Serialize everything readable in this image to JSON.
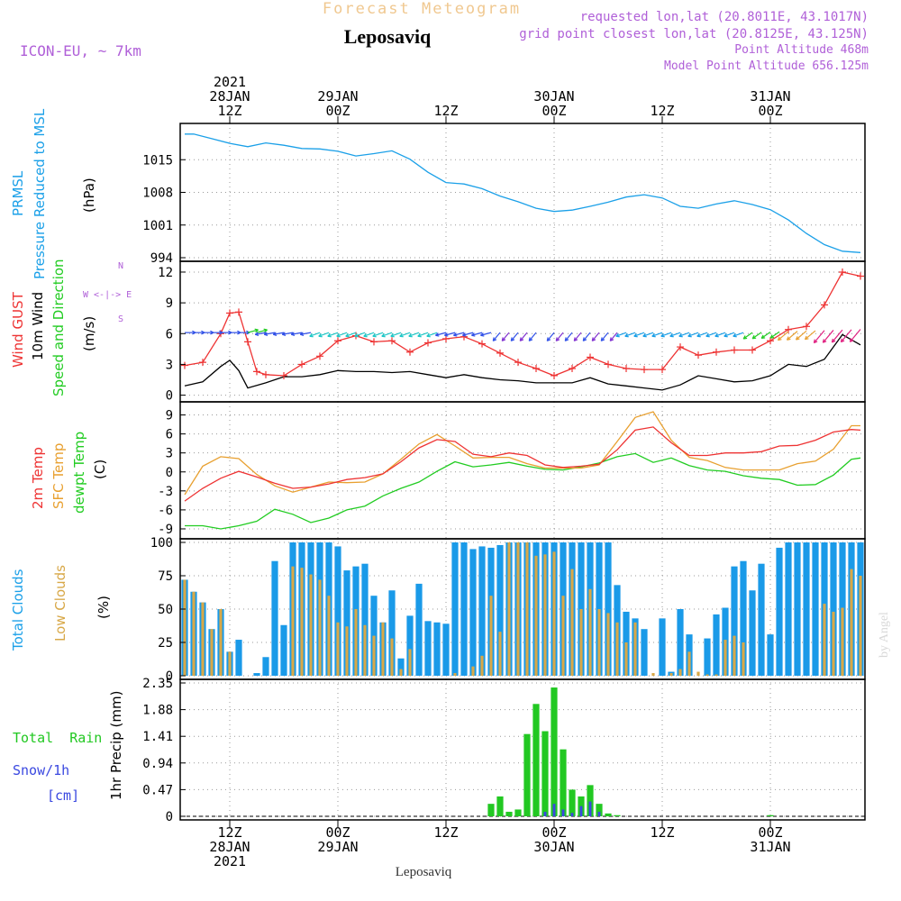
{
  "header": {
    "brand": "Forecast Meteogram",
    "location": "Leposaviq",
    "model": "ICON-EU, ~ 7km",
    "requested": "requested lon,lat (20.8011E, 43.1017N)",
    "grid_point": "grid point closest lon,lat (20.8125E, 43.125N)",
    "point_alt": "Point Altitude 468m",
    "model_alt": "Model Point Altitude 656.125m"
  },
  "footer": {
    "location": "Leposaviq",
    "watermark": "by Angel"
  },
  "time_axis": {
    "top_labels": [
      {
        "t": 0,
        "lines": [
          "2021",
          "28JAN",
          "12Z"
        ]
      },
      {
        "t": 12,
        "lines": [
          "29JAN",
          "00Z"
        ]
      },
      {
        "t": 24,
        "lines": [
          "12Z"
        ]
      },
      {
        "t": 36,
        "lines": [
          "30JAN",
          "00Z"
        ]
      },
      {
        "t": 48,
        "lines": [
          "12Z"
        ]
      },
      {
        "t": 60,
        "lines": [
          "31JAN",
          "00Z"
        ]
      }
    ],
    "bottom_labels": [
      {
        "t": 0,
        "lines": [
          "12Z",
          "28JAN",
          "2021"
        ]
      },
      {
        "t": 12,
        "lines": [
          "00Z",
          "29JAN"
        ]
      },
      {
        "t": 24,
        "lines": [
          "12Z"
        ]
      },
      {
        "t": 36,
        "lines": [
          "00Z",
          "30JAN"
        ]
      },
      {
        "t": 48,
        "lines": [
          "12Z"
        ]
      },
      {
        "t": 60,
        "lines": [
          "00Z",
          "31JAN"
        ]
      }
    ],
    "range_hours": [
      -5.5,
      70.5
    ]
  },
  "panel_labels": {
    "pressure": {
      "l1": "PRMSL",
      "l2": "Pressure Reduced to MSL",
      "unit": "(hPa)"
    },
    "wind": {
      "l1": "Wind GUST",
      "l2": "10m Wind",
      "l3": "Speed and Direction",
      "unit": "(m/s)",
      "compass_n": "N",
      "compass_s": "S",
      "compass_w": "W <-|-> E"
    },
    "temp": {
      "l1": "2m Temp",
      "l2": "SFC Temp",
      "l3": "dewpt Temp",
      "unit": "(C)"
    },
    "clouds": {
      "l1": "Total Clouds",
      "l2": "Low Clouds",
      "unit": "(%)"
    },
    "precip": {
      "l1": "Total  Rain",
      "l2": "Snow/1h",
      "l3": "[cm]",
      "unit": "1hr Precip (mm)"
    }
  },
  "colors": {
    "pressure": "#1ba0e8",
    "gust": "#ee3333",
    "wind": "#000000",
    "t2m": "#ee3333",
    "sfc": "#e8a030",
    "dew": "#22cc22",
    "total_cloud": "#1a9ae8",
    "low_cloud": "#d8a848",
    "rain": "#22c822",
    "snow": "#3a48e0",
    "purple": "#b060d8",
    "orange_brand": "#f0c890"
  },
  "chart_data": [
    {
      "type": "line",
      "id": "pressure",
      "title": "PRMSL Pressure Reduced to MSL",
      "ylabel": "(hPa)",
      "ylim": [
        994,
        1022
      ],
      "yticks": [
        994,
        1001,
        1008,
        1015
      ],
      "series": [
        {
          "name": "PRMSL",
          "x": [
            -5,
            -4,
            -2,
            0,
            2,
            4,
            6,
            8,
            10,
            12,
            14,
            16,
            18,
            20,
            22,
            24,
            26,
            28,
            30,
            32,
            34,
            36,
            38,
            40,
            42,
            44,
            46,
            48,
            50,
            52,
            54,
            56,
            58,
            60,
            62,
            64,
            66,
            68,
            70
          ],
          "y": [
            1020.5,
            1020.5,
            1019.5,
            1018.5,
            1017.8,
            1018.6,
            1018.1,
            1017.4,
            1017.3,
            1016.8,
            1015.8,
            1016.3,
            1016.9,
            1015.1,
            1012.3,
            1010.1,
            1009.8,
            1008.8,
            1007.2,
            1006.0,
            1004.6,
            1003.9,
            1004.2,
            1005.0,
            1005.9,
            1007.0,
            1007.5,
            1006.8,
            1005.0,
            1004.6,
            1005.5,
            1006.2,
            1005.4,
            1004.3,
            1002.1,
            999.2,
            996.8,
            995.4,
            995.1
          ]
        }
      ]
    },
    {
      "type": "line",
      "id": "wind",
      "title": "Wind GUST / 10m Wind Speed and Direction",
      "ylabel": "(m/s)",
      "ylim": [
        -0.3,
        12.7
      ],
      "yticks": [
        0,
        3,
        6,
        9,
        12
      ],
      "series": [
        {
          "name": "Wind GUST",
          "x": [
            -5,
            -3,
            -1,
            0,
            1,
            2,
            3,
            4,
            6,
            8,
            10,
            12,
            14,
            16,
            18,
            20,
            22,
            24,
            26,
            28,
            30,
            32,
            34,
            36,
            38,
            40,
            42,
            44,
            46,
            48,
            50,
            52,
            54,
            56,
            58,
            60,
            62,
            64,
            66,
            68,
            70
          ],
          "y": [
            2.9,
            3.2,
            6.0,
            8.0,
            8.1,
            5.2,
            2.3,
            2.0,
            1.9,
            3.0,
            3.8,
            5.3,
            5.8,
            5.2,
            5.3,
            4.2,
            5.1,
            5.5,
            5.7,
            5.0,
            4.1,
            3.2,
            2.6,
            1.9,
            2.6,
            3.7,
            3.0,
            2.6,
            2.5,
            2.5,
            4.7,
            3.9,
            4.2,
            4.4,
            4.4,
            5.3,
            6.4,
            6.7,
            8.8,
            12.0,
            11.6
          ]
        },
        {
          "name": "10m Wind",
          "x": [
            -5,
            -3,
            -1,
            0,
            1,
            2,
            4,
            6,
            8,
            10,
            12,
            14,
            16,
            18,
            20,
            22,
            24,
            26,
            28,
            30,
            32,
            34,
            36,
            38,
            40,
            42,
            44,
            46,
            48,
            50,
            52,
            54,
            56,
            58,
            60,
            62,
            64,
            66,
            68,
            70
          ],
          "y": [
            0.9,
            1.3,
            2.8,
            3.4,
            2.4,
            0.7,
            1.2,
            1.8,
            1.8,
            2.0,
            2.4,
            2.3,
            2.3,
            2.2,
            2.3,
            2.0,
            1.7,
            2.0,
            1.7,
            1.5,
            1.4,
            1.2,
            1.2,
            1.2,
            1.7,
            1.1,
            0.9,
            0.7,
            0.5,
            1.0,
            1.9,
            1.6,
            1.3,
            1.4,
            1.9,
            3.0,
            2.8,
            3.5,
            5.9,
            4.9
          ]
        }
      ]
    },
    {
      "type": "line",
      "id": "temperature",
      "title": "2m Temp / SFC Temp / dewpt Temp",
      "ylabel": "(C)",
      "ylim": [
        -10,
        10.5
      ],
      "yticks": [
        -9,
        -6,
        -3,
        0,
        3,
        6,
        9
      ],
      "series": [
        {
          "name": "2m Temp",
          "x": [
            -5,
            -3,
            -1,
            1,
            3,
            5,
            7,
            9,
            11,
            13,
            15,
            17,
            19,
            21,
            23,
            25,
            27,
            29,
            31,
            33,
            35,
            37,
            39,
            41,
            43,
            45,
            47,
            49,
            51,
            53,
            55,
            57,
            59,
            61,
            63,
            65,
            67,
            69,
            70
          ],
          "y": [
            -4.6,
            -2.6,
            -1.0,
            0.1,
            -0.8,
            -1.8,
            -2.6,
            -2.4,
            -1.9,
            -1.2,
            -0.9,
            -0.3,
            1.6,
            3.8,
            5.1,
            4.8,
            2.8,
            2.4,
            3.0,
            2.6,
            1.1,
            0.7,
            0.9,
            1.2,
            3.5,
            6.6,
            7.1,
            4.6,
            2.6,
            2.6,
            3.0,
            3.0,
            3.2,
            4.1,
            4.2,
            5.0,
            6.3,
            6.7,
            6.6
          ]
        },
        {
          "name": "SFC Temp",
          "x": [
            -5,
            -3,
            -1,
            1,
            3,
            5,
            7,
            9,
            11,
            13,
            15,
            17,
            19,
            21,
            23,
            25,
            27,
            29,
            31,
            33,
            35,
            37,
            39,
            41,
            43,
            45,
            47,
            49,
            51,
            53,
            55,
            57,
            59,
            61,
            63,
            65,
            67,
            69,
            70
          ],
          "y": [
            -3.6,
            0.9,
            2.4,
            2.1,
            -0.4,
            -2.2,
            -3.2,
            -2.4,
            -1.6,
            -1.7,
            -1.6,
            -0.3,
            2.0,
            4.4,
            5.9,
            4.1,
            2.2,
            2.3,
            2.3,
            1.3,
            0.6,
            0.6,
            0.6,
            1.1,
            4.8,
            8.6,
            9.5,
            5.0,
            2.3,
            1.8,
            0.7,
            0.3,
            0.3,
            0.3,
            1.3,
            1.7,
            3.6,
            7.3,
            7.3
          ]
        },
        {
          "name": "dewpt Temp",
          "x": [
            -5,
            -3,
            -1,
            1,
            3,
            5,
            7,
            9,
            11,
            13,
            15,
            17,
            19,
            21,
            23,
            25,
            27,
            29,
            31,
            33,
            35,
            37,
            39,
            41,
            43,
            45,
            47,
            49,
            51,
            53,
            55,
            57,
            59,
            61,
            63,
            65,
            67,
            69,
            70
          ],
          "y": [
            -8.5,
            -8.5,
            -9.0,
            -8.5,
            -7.8,
            -5.9,
            -6.7,
            -8.0,
            -7.3,
            -6.0,
            -5.4,
            -3.8,
            -2.6,
            -1.6,
            0.1,
            1.6,
            0.8,
            1.1,
            1.5,
            0.9,
            0.4,
            0.3,
            0.8,
            1.4,
            2.4,
            2.9,
            1.5,
            2.2,
            1.0,
            0.3,
            0.1,
            -0.6,
            -1.0,
            -1.2,
            -2.1,
            -2.0,
            -0.5,
            2.0,
            2.2
          ]
        }
      ]
    },
    {
      "type": "bar",
      "id": "clouds",
      "title": "Total Clouds / Low Clouds",
      "ylabel": "(%)",
      "ylim": [
        0,
        100
      ],
      "yticks": [
        0,
        25,
        50,
        75,
        100
      ],
      "x": [
        -5,
        -4,
        -3,
        -2,
        -1,
        0,
        1,
        2,
        3,
        4,
        5,
        6,
        7,
        8,
        9,
        10,
        11,
        12,
        13,
        14,
        15,
        16,
        17,
        18,
        19,
        20,
        21,
        22,
        23,
        24,
        25,
        26,
        27,
        28,
        29,
        30,
        31,
        32,
        33,
        34,
        35,
        36,
        37,
        38,
        39,
        40,
        41,
        42,
        43,
        44,
        45,
        46,
        47,
        48,
        49,
        50,
        51,
        52,
        53,
        54,
        55,
        56,
        57,
        58,
        59,
        60,
        61,
        62,
        63,
        64,
        65,
        66,
        67,
        68,
        69,
        70
      ],
      "series": [
        {
          "name": "Total Clouds",
          "values": [
            72,
            63,
            55,
            35,
            50,
            18,
            27,
            0,
            2,
            14,
            86,
            38,
            100,
            100,
            100,
            100,
            100,
            97,
            79,
            82,
            84,
            60,
            40,
            64,
            13,
            45,
            69,
            41,
            40,
            39,
            100,
            100,
            95,
            97,
            96,
            98,
            100,
            100,
            100,
            100,
            100,
            100,
            100,
            100,
            100,
            100,
            100,
            100,
            68,
            48,
            43,
            35,
            0,
            43,
            3,
            50,
            31,
            0,
            28,
            46,
            51,
            82,
            86,
            64,
            84,
            31,
            96,
            100,
            100,
            100,
            100,
            100,
            100,
            100,
            100,
            100
          ],
          "values_note": "percent"
        },
        {
          "name": "Low Clouds",
          "values": [
            72,
            63,
            55,
            35,
            50,
            18,
            0,
            0,
            0,
            0,
            0,
            0,
            82,
            81,
            76,
            72,
            60,
            40,
            37,
            50,
            38,
            30,
            40,
            28,
            5,
            20,
            0,
            0,
            0,
            0,
            2,
            0,
            7,
            15,
            60,
            33,
            100,
            100,
            100,
            90,
            91,
            93,
            60,
            80,
            50,
            65,
            50,
            47,
            40,
            25,
            40,
            0,
            2,
            0,
            2,
            5,
            18,
            3,
            1,
            1,
            27,
            30,
            25,
            0,
            0,
            0,
            0,
            0,
            0,
            0,
            0,
            54,
            48,
            51,
            80,
            75
          ],
          "values_note": "percent"
        }
      ]
    },
    {
      "type": "bar",
      "id": "precip",
      "title": "1hr Precip (mm)",
      "ylabel": "1hr Precip (mm)",
      "ylim": [
        0,
        2.35
      ],
      "yticks": [
        0,
        0.47,
        0.94,
        1.41,
        1.88,
        2.35
      ],
      "x": [
        29,
        30,
        31,
        32,
        33,
        34,
        35,
        36,
        37,
        38,
        39,
        40,
        41,
        42,
        43,
        60
      ],
      "series": [
        {
          "name": "Total Rain",
          "values": [
            0.22,
            0.35,
            0.08,
            0.12,
            1.45,
            1.98,
            1.5,
            2.27,
            1.18,
            0.47,
            0.35,
            0.55,
            0.22,
            0.05,
            0.02,
            0.02
          ]
        },
        {
          "name": "Snow/1h",
          "values": [
            0,
            0,
            0,
            0,
            0,
            0,
            0.08,
            0.22,
            0.12,
            0.06,
            0.18,
            0.26,
            0.08,
            0,
            0,
            0
          ]
        }
      ]
    }
  ]
}
